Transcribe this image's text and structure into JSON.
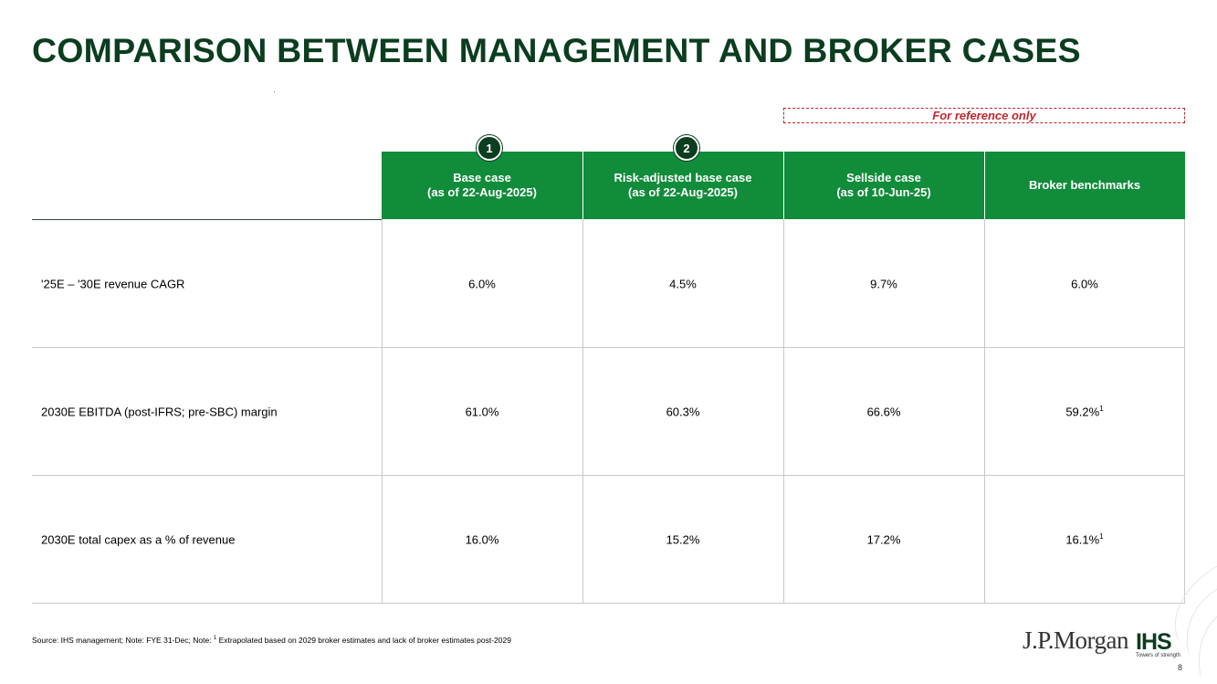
{
  "title": "COMPARISON BETWEEN MANAGEMENT AND BROKER CASES",
  "reference_note": "For reference only",
  "badges": [
    "1",
    "2"
  ],
  "columns": [
    {
      "line1": "Base case",
      "line2": "(as of 22-Aug-2025)"
    },
    {
      "line1": "Risk-adjusted base case",
      "line2": "(as of 22-Aug-2025)"
    },
    {
      "line1": "Sellside case",
      "line2": "(as of 10-Jun-25)"
    },
    {
      "line1": "Broker benchmarks",
      "line2": ""
    }
  ],
  "rows": [
    {
      "label": "'25E – '30E revenue CAGR",
      "values": [
        "6.0%",
        "4.5%",
        "9.7%",
        "6.0%"
      ],
      "last_sup": ""
    },
    {
      "label": "2030E EBITDA (post-IFRS; pre-SBC) margin",
      "values": [
        "61.0%",
        "60.3%",
        "66.6%",
        "59.2%"
      ],
      "last_sup": "1"
    },
    {
      "label": "2030E total capex as a % of revenue",
      "values": [
        "16.0%",
        "15.2%",
        "17.2%",
        "16.1%"
      ],
      "last_sup": "1"
    }
  ],
  "footnote": {
    "prefix": "Source: IHS management; Note: FYE 31-Dec; Note: ",
    "sup": "1",
    "text": " Extrapolated based on 2029 broker estimates and lack of broker estimates post-2029"
  },
  "logos": {
    "jpmorgan": "J.P.Morgan",
    "ihs": "IHS",
    "ihs_tagline": "Towers of strength"
  },
  "page_number": "8",
  "colors": {
    "title": "#0b3d1f",
    "header_fill": "#118c3a",
    "badge": "#0b3d1f",
    "reference": "#c0272d"
  }
}
